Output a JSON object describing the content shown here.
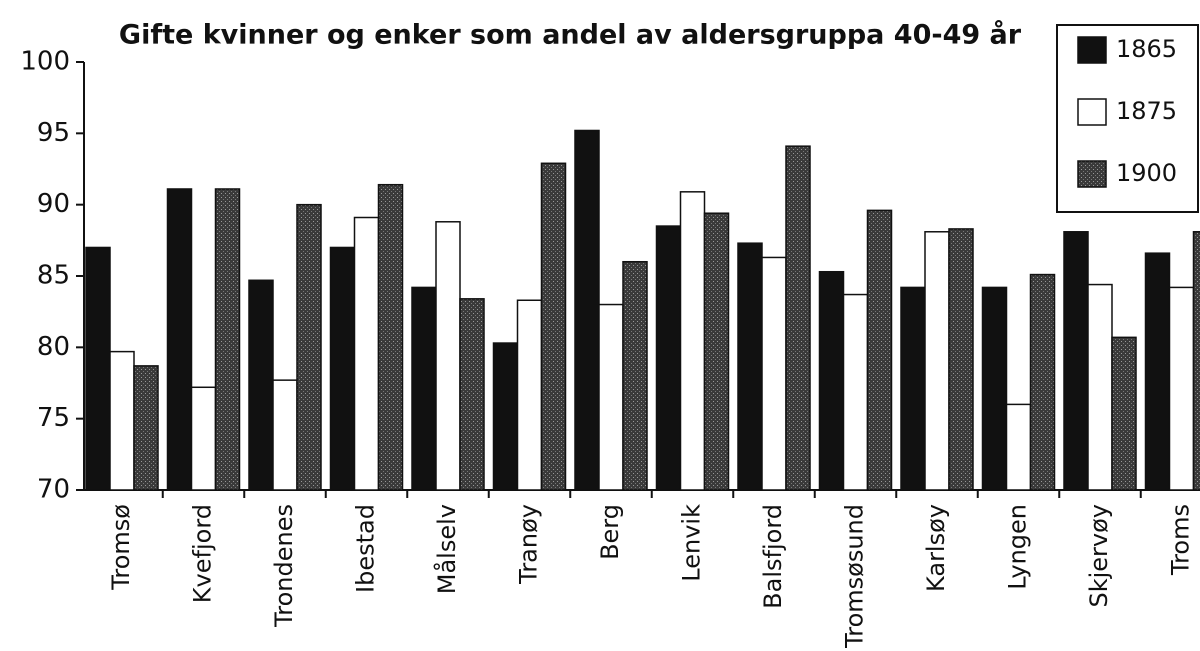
{
  "chart_data": {
    "type": "bar",
    "title": "Gifte kvinner  og enker som andel av aldersgruppa 40-49 år",
    "categories": [
      "Tromsø",
      "Kvefjord",
      "Trondenes",
      "Ibestad",
      "Målselv",
      "Tranøy",
      "Berg",
      "Lenvik",
      "Balsfjord",
      "Tromsøsund",
      "Karlsøy",
      "Lyngen",
      "Skjervøy",
      "Troms"
    ],
    "series": [
      {
        "name": "1865",
        "color": "#111111",
        "values": [
          87.0,
          91.1,
          84.7,
          87.0,
          84.2,
          80.3,
          95.2,
          88.5,
          87.3,
          85.3,
          84.2,
          84.2,
          88.1,
          86.6
        ]
      },
      {
        "name": "1875",
        "color": "#ffffff",
        "values": [
          79.7,
          77.2,
          77.7,
          89.1,
          88.8,
          83.3,
          83.0,
          90.9,
          86.3,
          83.7,
          88.1,
          76.0,
          84.4,
          84.2
        ]
      },
      {
        "name": "1900",
        "color": "#3a3a3a",
        "values": [
          78.7,
          91.1,
          90.0,
          91.4,
          83.4,
          92.9,
          86.0,
          89.4,
          94.1,
          89.6,
          88.3,
          85.1,
          80.7,
          88.1
        ]
      }
    ],
    "ylim": [
      70,
      100
    ],
    "yticks": [
      70,
      75,
      80,
      85,
      90,
      95,
      100
    ],
    "legend": "top-right"
  }
}
